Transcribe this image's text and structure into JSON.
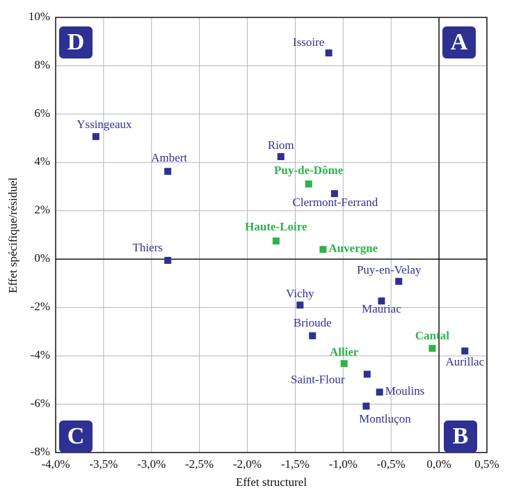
{
  "chart_data": {
    "type": "scatter",
    "x_label": "Effet structurel",
    "y_label": "Effet spécifique/résiduel",
    "labels": [
      "Issoire",
      "Yssingeaux",
      "Ambert",
      "Riom",
      "Puy-de-Dôme",
      "Clermont-Ferrand",
      "Haute-Loire",
      "Auvergne",
      "Thiers",
      "Puy-en-Velay",
      "Vichy",
      "Mauriac",
      "Brioude",
      "Cantal",
      "Aurillac",
      "Allier",
      "Saint-Flour",
      "Moulins",
      "Montluçon"
    ],
    "x": [
      -1.15,
      -3.58,
      -2.83,
      -1.65,
      -1.36,
      -1.09,
      -1.7,
      -1.21,
      -2.83,
      -0.42,
      -1.45,
      -0.6,
      -1.32,
      -0.07,
      0.27,
      -0.99,
      -0.75,
      -0.62,
      -0.76
    ],
    "values": [
      8.53,
      5.07,
      3.63,
      4.24,
      3.11,
      2.71,
      0.75,
      0.4,
      -0.05,
      -0.92,
      -1.9,
      -1.73,
      -3.17,
      -3.69,
      -3.8,
      -4.32,
      -4.76,
      -5.5,
      -6.08
    ],
    "colors": [
      "#2e3192",
      "#2e3192",
      "#2e3192",
      "#2e3192",
      "#2db34a",
      "#2e3192",
      "#2db34a",
      "#2db34a",
      "#2e3192",
      "#2e3192",
      "#2e3192",
      "#2e3192",
      "#2e3192",
      "#2db34a",
      "#2e3192",
      "#2db34a",
      "#2e3192",
      "#2e3192",
      "#2e3192"
    ],
    "annotations": [
      "A",
      "B",
      "C",
      "D"
    ],
    "xlim": [
      -4.0,
      0.5
    ],
    "ylim": [
      -8,
      10
    ],
    "xticks": [
      {
        "value": -4.0,
        "label": "-4,0%"
      },
      {
        "value": -3.5,
        "label": "-3,5%"
      },
      {
        "value": -3.0,
        "label": "-3,0%"
      },
      {
        "value": -2.5,
        "label": "-2,5%"
      },
      {
        "value": -2.0,
        "label": "-2,0%"
      },
      {
        "value": -1.5,
        "label": "-1,5%"
      },
      {
        "value": -1.0,
        "label": "-1,0%"
      },
      {
        "value": -0.5,
        "label": "-0,5%"
      },
      {
        "value": 0.0,
        "label": "0,0%"
      },
      {
        "value": 0.5,
        "label": "0,5%"
      }
    ],
    "yticks": [
      {
        "value": -8,
        "label": "-8%"
      },
      {
        "value": -6,
        "label": "-6%"
      },
      {
        "value": -4,
        "label": "-4%"
      },
      {
        "value": -2,
        "label": "-2%"
      },
      {
        "value": 0,
        "label": "0%"
      },
      {
        "value": 2,
        "label": "2%"
      },
      {
        "value": 4,
        "label": "4%"
      },
      {
        "value": 6,
        "label": "6%"
      },
      {
        "value": 8,
        "label": "8%"
      },
      {
        "value": 10,
        "label": "10%"
      }
    ],
    "grid": true
  }
}
